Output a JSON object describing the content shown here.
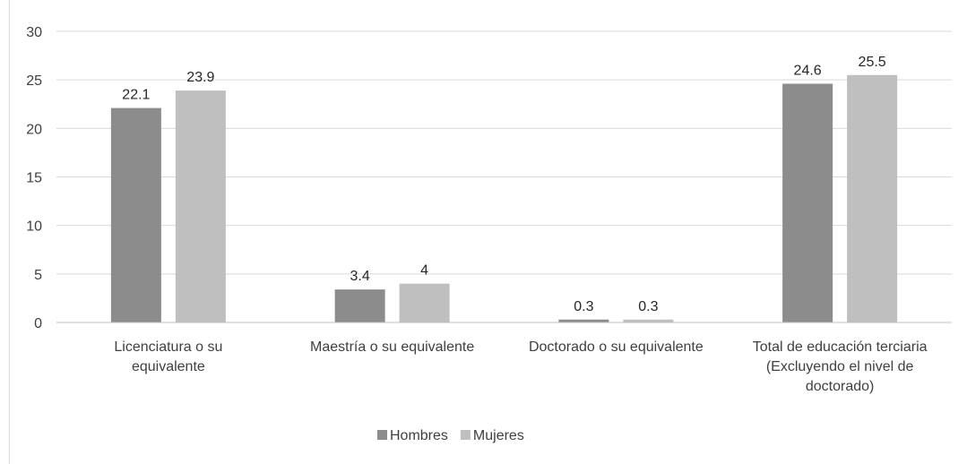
{
  "chart_data": {
    "type": "bar",
    "title": "",
    "xlabel": "",
    "ylabel": "",
    "ylim": [
      0,
      30
    ],
    "yticks": [
      0,
      5,
      10,
      15,
      20,
      25,
      30
    ],
    "grid": true,
    "legend_position": "bottom",
    "categories": [
      [
        "Licenciatura o su",
        "equivalente"
      ],
      [
        "Maestría o su equivalente"
      ],
      [
        "Doctorado o su equivalente"
      ],
      [
        "Total de educación terciaria",
        "(Excluyendo el nivel de",
        "doctorado)"
      ]
    ],
    "series": [
      {
        "name": "Hombres",
        "color": "#8c8c8c",
        "values": [
          22.1,
          3.4,
          0.3,
          24.6
        ],
        "labels": [
          "22.1",
          "3.4",
          "0.3",
          "24.6"
        ]
      },
      {
        "name": "Mujeres",
        "color": "#bfbfbf",
        "values": [
          23.9,
          4,
          0.3,
          25.5
        ],
        "labels": [
          "23.9",
          "4",
          "0.3",
          "25.5"
        ]
      }
    ]
  }
}
